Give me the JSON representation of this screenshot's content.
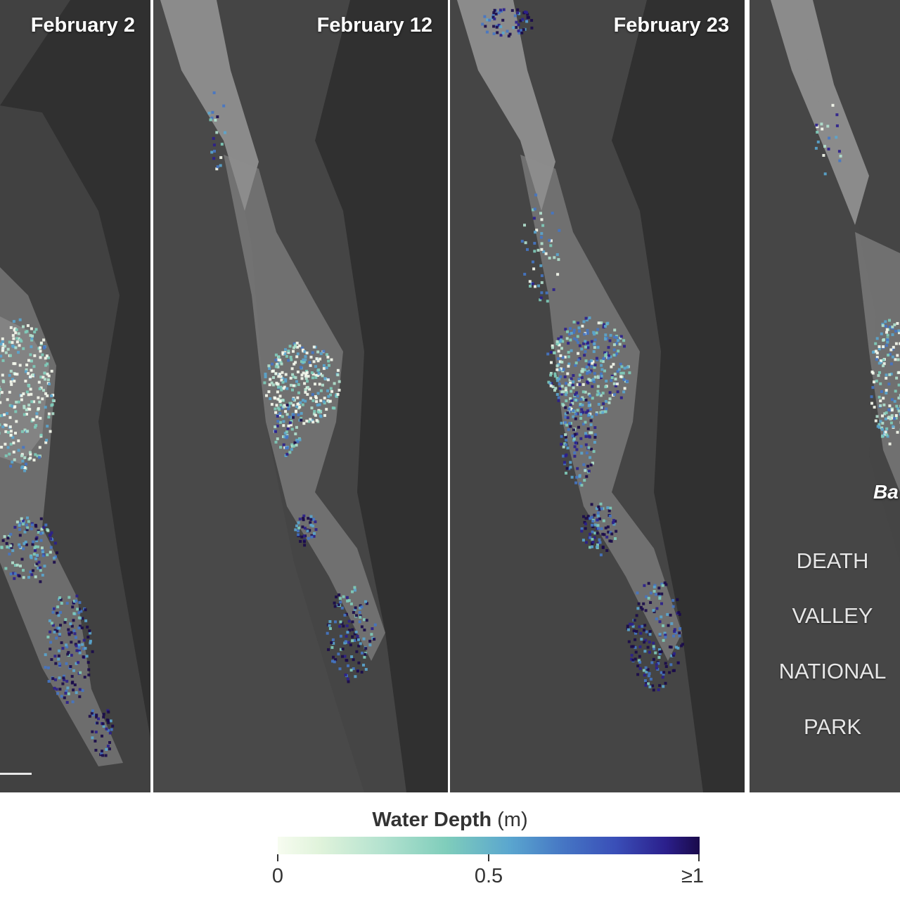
{
  "panels": [
    {
      "date": "February 2"
    },
    {
      "date": "February 12"
    },
    {
      "date": "February 23"
    },
    {
      "date": ""
    }
  ],
  "park_label": [
    "DEATH",
    "VALLEY",
    "NATIONAL",
    "PARK"
  ],
  "place_label": "Ba",
  "legend": {
    "title": "Water Depth",
    "unit": "(m)",
    "ticks": [
      "0",
      "0.5",
      "≥1"
    ],
    "range": [
      0,
      1
    ],
    "colors": [
      "#f7fcf0",
      "#b3e2cf",
      "#7fcdbb",
      "#5aa6cf",
      "#4575c4",
      "#2b1f8c",
      "#1a0a4a"
    ]
  }
}
